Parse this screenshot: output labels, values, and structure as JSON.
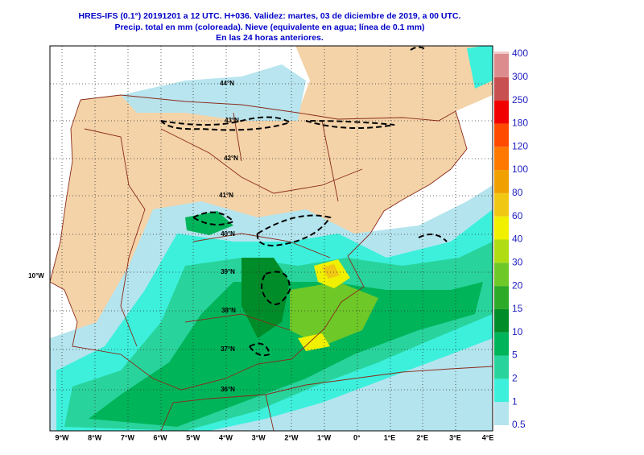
{
  "header": {
    "title": "HRES-IFS (0.1°) 20191201 a 12 UTC.  H+036. Validez: martes, 03 de diciembre de 2019,  a  00 UTC.",
    "subtitle": "Precip. total en mm (coloreada). Nieve (equivalente en agua; línea de 0.1 mm)",
    "note": "En las 24 horas anteriores."
  },
  "map": {
    "longitude_labels": [
      "9°W",
      "8°W",
      "7°W",
      "6°W",
      "5°W",
      "4°W",
      "3°W",
      "2°W",
      "1°W",
      "0°",
      "1°E",
      "2°E",
      "3°E",
      "4°E"
    ],
    "latitude_labels": [
      "44°N",
      "43°N",
      "42°N",
      "41°N",
      "40°N",
      "39°N",
      "38°N",
      "37°N",
      "36°N"
    ],
    "side_label": "10°W"
  },
  "legend": {
    "levels": [
      0.5,
      1,
      2,
      5,
      10,
      15,
      20,
      30,
      40,
      60,
      80,
      100,
      120,
      180,
      250,
      300,
      400
    ],
    "colors": [
      "#b4e4ee",
      "#3cf0dc",
      "#28d49c",
      "#00b45a",
      "#008c28",
      "#2caa28",
      "#6ec828",
      "#b0dc14",
      "#f0f000",
      "#f0c814",
      "#f0a000",
      "#ff7800",
      "#ff4a00",
      "#f00000",
      "#c85050",
      "#dc8c8c"
    ]
  }
}
